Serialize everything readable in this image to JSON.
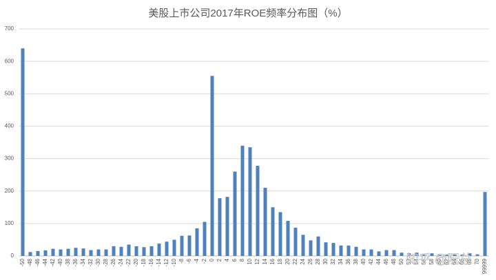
{
  "chart_data": {
    "type": "bar",
    "title": "美股上市公司2017年ROE频率分布图（%）",
    "categories": [
      "-50",
      "-48",
      "-46",
      "-44",
      "-42",
      "-40",
      "-38",
      "-36",
      "-34",
      "-32",
      "-30",
      "-28",
      "-26",
      "-24",
      "-22",
      "-20",
      "-18",
      "-16",
      "-14",
      "-12",
      "-10",
      "-8",
      "-6",
      "-4",
      "-2",
      "0",
      "2",
      "4",
      "6",
      "8",
      "10",
      "12",
      "14",
      "16",
      "18",
      "20",
      "22",
      "24",
      "26",
      "28",
      "30",
      "32",
      "34",
      "36",
      "38",
      "40",
      "42",
      "44",
      "46",
      "48",
      "50",
      "52",
      "54",
      "56",
      "58",
      "60",
      "62",
      "64",
      "66",
      "68",
      "70",
      "99999"
    ],
    "values": [
      640,
      12,
      15,
      17,
      22,
      20,
      22,
      25,
      23,
      18,
      20,
      20,
      30,
      28,
      35,
      30,
      27,
      30,
      38,
      44,
      50,
      62,
      63,
      85,
      105,
      555,
      178,
      182,
      260,
      340,
      335,
      278,
      210,
      150,
      135,
      108,
      87,
      65,
      48,
      60,
      42,
      40,
      32,
      32,
      28,
      20,
      20,
      14,
      18,
      18,
      10,
      8,
      10,
      6,
      8,
      5,
      4,
      5,
      4,
      8,
      5,
      197
    ],
    "color": "#4f81bd",
    "ylim": [
      0,
      700
    ],
    "yticks": [
      0,
      100,
      200,
      300,
      400,
      500,
      600,
      700
    ],
    "grid": true,
    "watermark": "知乎 @阮总"
  }
}
